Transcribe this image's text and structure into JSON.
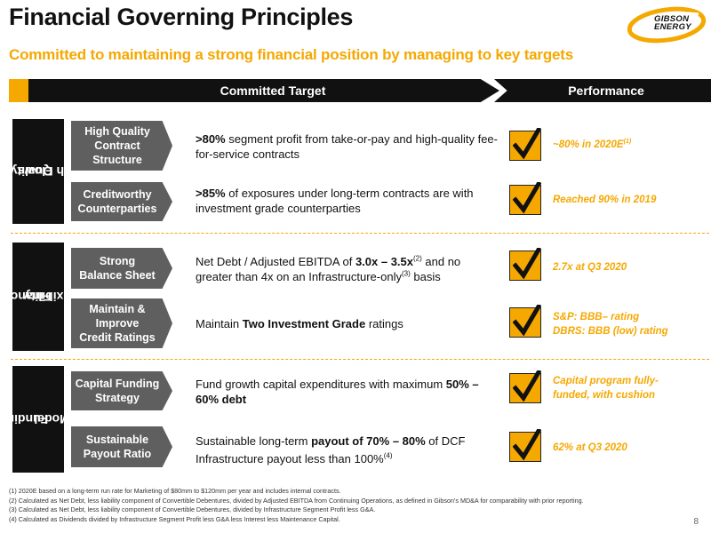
{
  "header": {
    "title": "Financial Governing Principles",
    "subtitle": "Committed to maintaining a strong financial position by managing to key targets",
    "logo_line1": "GIBSON",
    "logo_line2": "ENERGY"
  },
  "columns": {
    "target": "Committed Target",
    "performance": "Performance"
  },
  "sections": [
    {
      "label_line1": "Quality of",
      "label_line2": "Cash Flows"
    },
    {
      "label_line1": "Financial",
      "label_line2": "Flexibility"
    },
    {
      "label_line1": "Funding",
      "label_line2": "Model"
    }
  ],
  "rows": [
    {
      "category": [
        "High Quality",
        "Contract",
        "Structure"
      ],
      "target_pre": "",
      "target_bold1": ">80%",
      "target_mid": " segment profit from take-or-pay and high-quality fee-for-service contracts",
      "target_bold2": "",
      "target_post": "",
      "perf_text": "~80% in 2020E",
      "perf_sup": "(1)",
      "perf_line2": ""
    },
    {
      "category": [
        "Creditworthy",
        "Counterparties"
      ],
      "target_pre": "",
      "target_bold1": ">85%",
      "target_mid": " of exposures under long-term contracts are with investment grade counterparties",
      "target_bold2": "",
      "target_post": "",
      "perf_text": "Reached 90% in 2019",
      "perf_sup": "",
      "perf_line2": ""
    },
    {
      "category": [
        "Strong",
        "Balance Sheet"
      ],
      "target_pre": "Net Debt / Adjusted EBITDA of ",
      "target_bold1": "3.0x – 3.5x",
      "target_sup1": "(2)",
      "target_mid": " and no greater than 4x on an Infrastructure-only",
      "target_sup2": "(3)",
      "target_post": " basis",
      "perf_text": "2.7x at Q3 2020",
      "perf_sup": "",
      "perf_line2": ""
    },
    {
      "category": [
        "Maintain &",
        "Improve",
        "Credit Ratings"
      ],
      "target_pre": "Maintain ",
      "target_bold1": "Two Investment Grade",
      "target_mid": " ratings",
      "target_post": "",
      "perf_text": "S&P: BBB–  rating",
      "perf_sup": "",
      "perf_line2": "DBRS: BBB (low) rating"
    },
    {
      "category": [
        "Capital Funding",
        "Strategy"
      ],
      "target_pre": "Fund growth capital expenditures with maximum ",
      "target_bold1": "50% – 60% debt",
      "target_mid": "",
      "target_post": "",
      "perf_text": "Capital program fully-",
      "perf_sup": "",
      "perf_line2": "funded, with cushion"
    },
    {
      "category": [
        "Sustainable",
        "Payout Ratio"
      ],
      "target_pre": "Sustainable long-term ",
      "target_bold1": "payout of 70% – 80%",
      "target_mid": " of DCF",
      "target_line2": "Infrastructure payout less than 100%",
      "target_sup2": "(4)",
      "target_post": "",
      "perf_text": "62% at Q3 2020",
      "perf_sup": "",
      "perf_line2": ""
    }
  ],
  "footnotes": [
    "(1) 2020E based on a long-term run rate for Marketing of $80mm to $120mm per year and includes internal contracts.",
    "(2) Calculated as Net Debt, less liability component of Convertible Debentures, divided by Adjusted EBITDA from Continuing Operations, as defined in Gibson's MD&A for comparability with prior reporting.",
    "(3) Calculated as Net Debt, less liability component of Convertible Debentures, divided by Infrastructure Segment Profit less G&A.",
    "(4) Calculated as Dividends divided by Infrastructure Segment Profit less G&A less Interest less Maintenance Capital."
  ],
  "page_number": "8",
  "colors": {
    "accent": "#f5a800",
    "dark": "#111111",
    "gray": "#5f5f5f"
  },
  "icons": {
    "check": "checkmark-icon",
    "logo": "gibson-energy-logo"
  }
}
